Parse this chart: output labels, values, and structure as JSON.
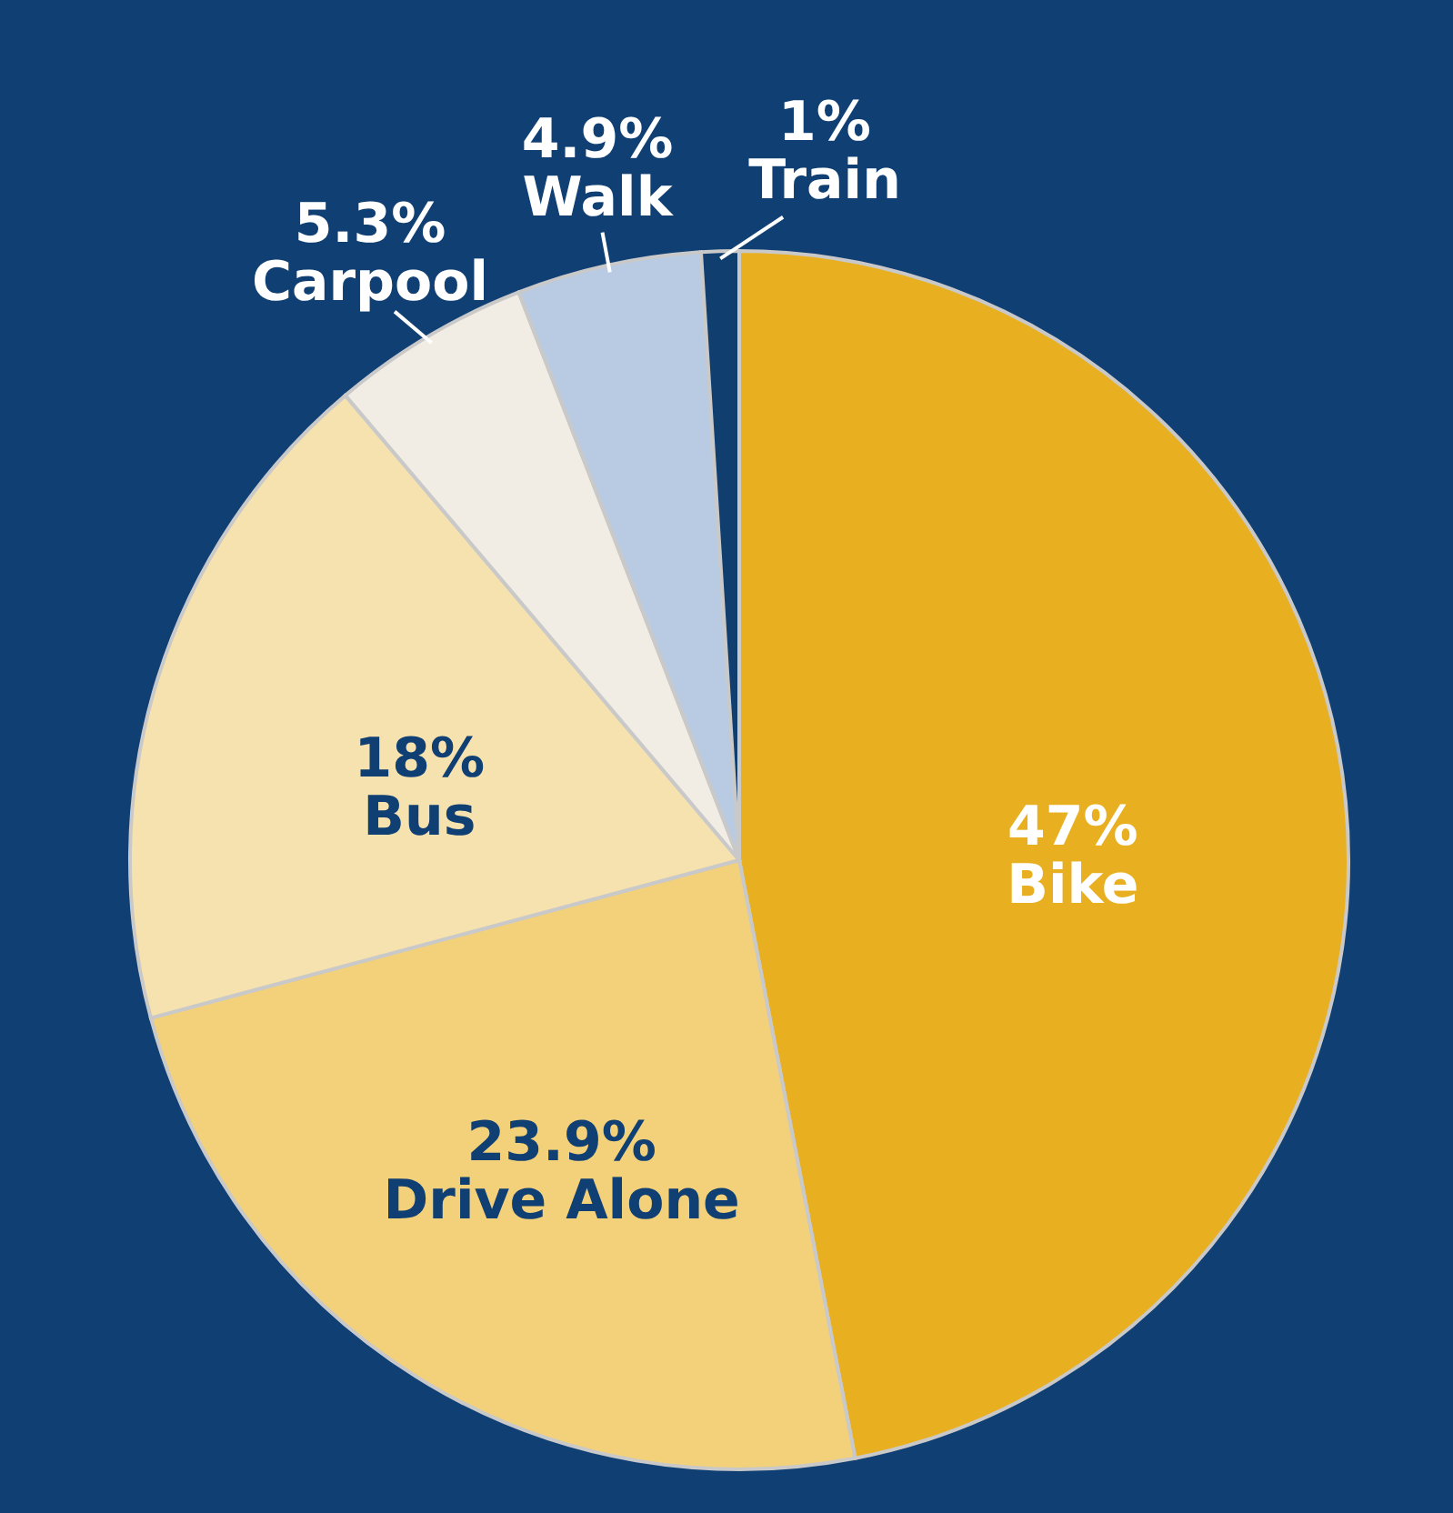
{
  "chart_data": {
    "type": "pie",
    "categories": [
      "Bike",
      "Drive Alone",
      "Bus",
      "Carpool",
      "Walk",
      "Train"
    ],
    "values": [
      47,
      23.9,
      18,
      5.3,
      4.9,
      1
    ],
    "value_labels": [
      "47%",
      "23.9%",
      "18%",
      "5.3%",
      "4.9%",
      "1%"
    ],
    "colors": [
      "#e8b020",
      "#f3d17a",
      "#f6e2ae",
      "#f1ede4",
      "#b9cbe3",
      "#103e6f"
    ]
  }
}
